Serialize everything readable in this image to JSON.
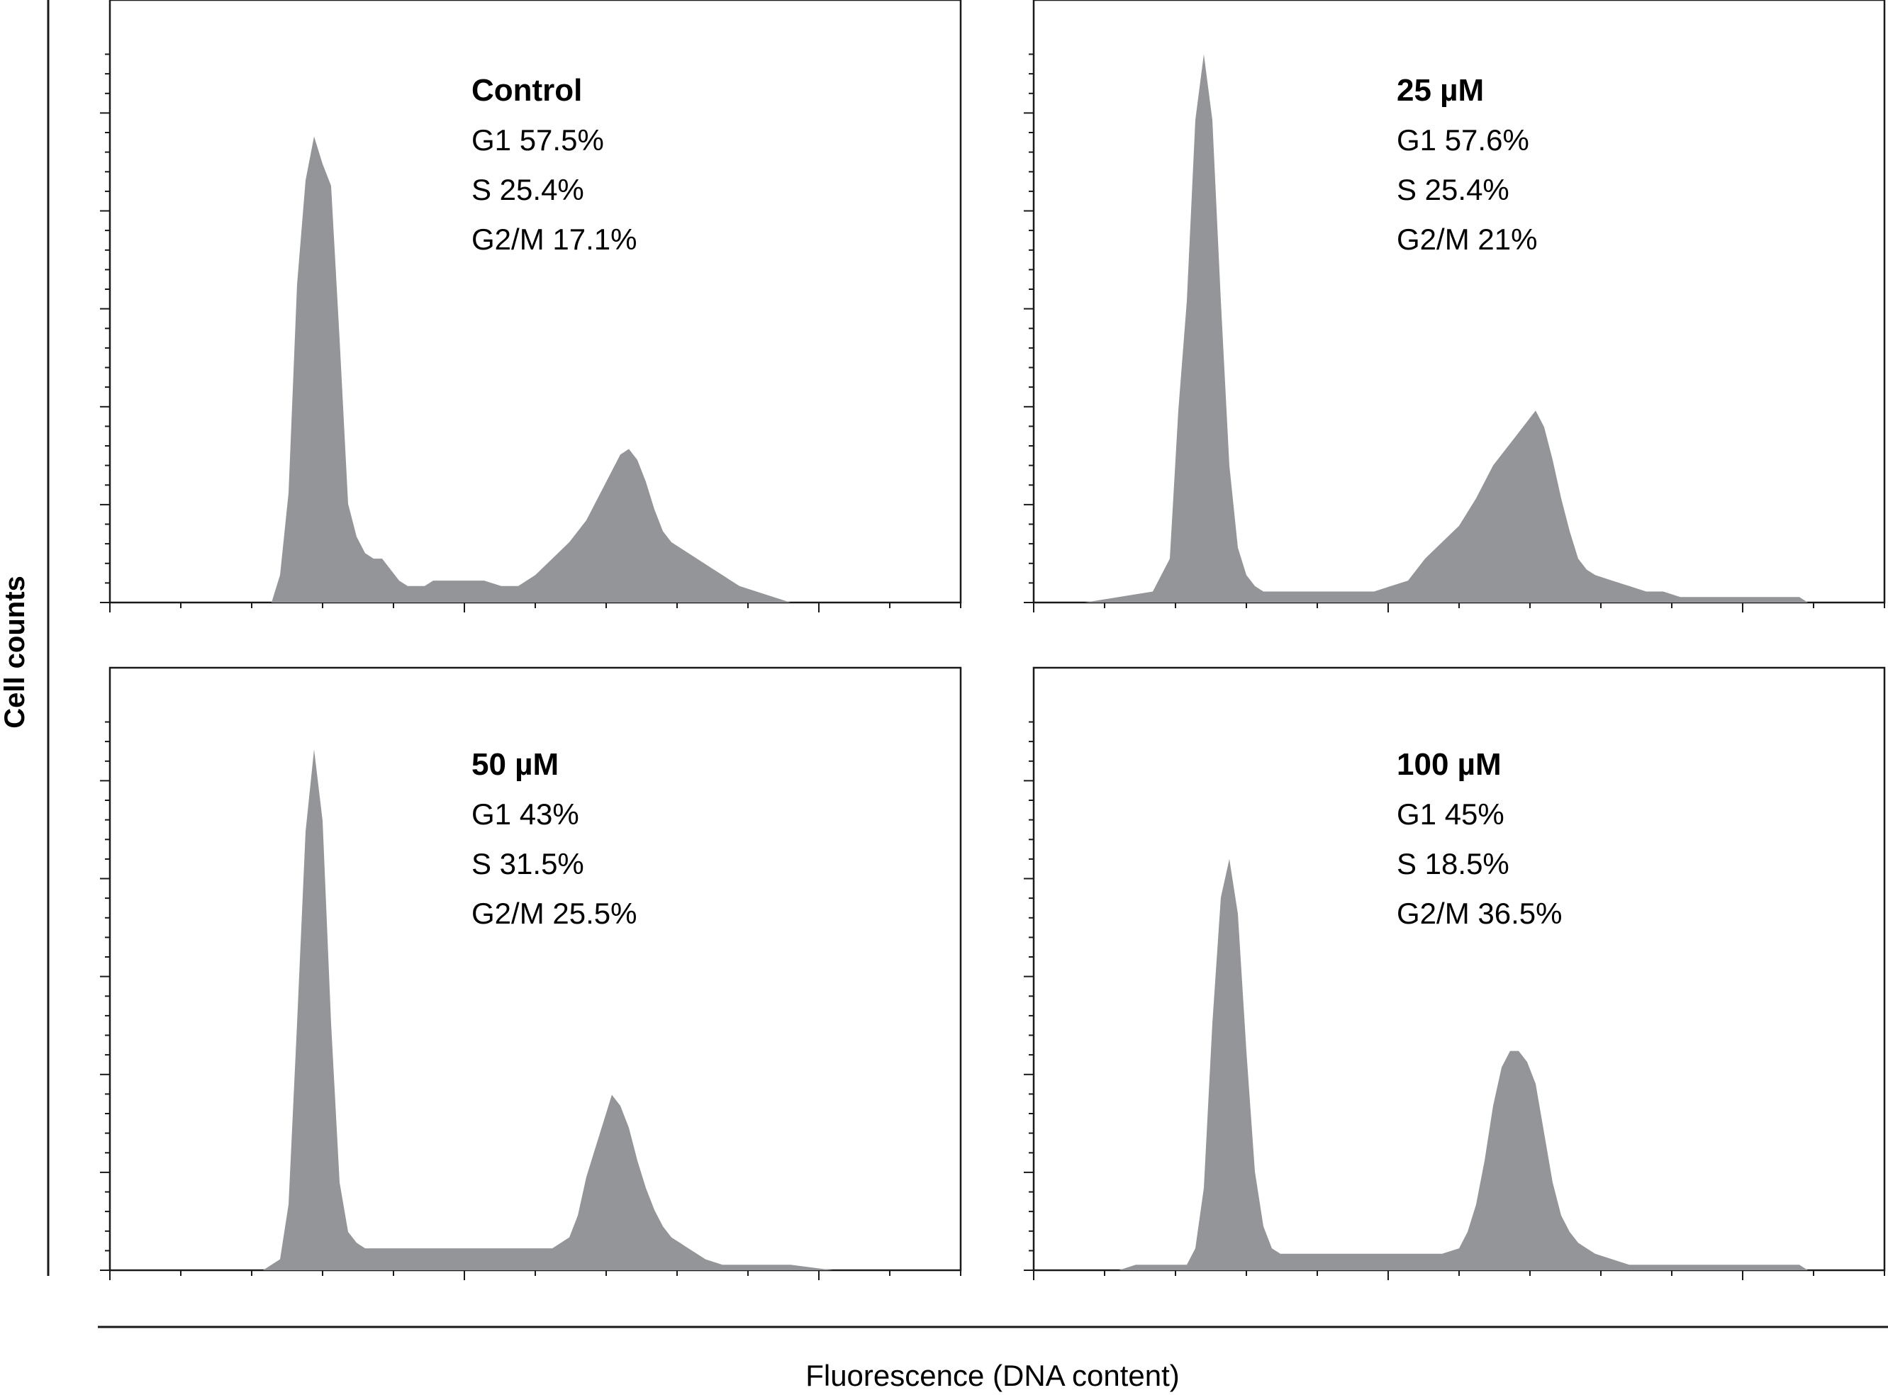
{
  "figure": {
    "y_axis_label": "Cell counts",
    "x_axis_label": "Fluorescence (DNA content)",
    "fill_color": "#939598",
    "line_color": "#1a1a1a"
  },
  "chart_data": [
    {
      "type": "area",
      "title": "Control",
      "annotations": [
        "G1 57.5%",
        "S 25.4%",
        "G2/M 17.1%"
      ],
      "xlabel": "Fluorescence (DNA content)",
      "ylabel": "Cell counts",
      "xlim": [
        0,
        100
      ],
      "ylim": [
        0,
        100
      ],
      "grid": false,
      "x": [
        0,
        19,
        20,
        21,
        22,
        23,
        24,
        25,
        26,
        27,
        28,
        29,
        30,
        31,
        32,
        33,
        34,
        35,
        36,
        37,
        38,
        40,
        42,
        44,
        46,
        48,
        50,
        52,
        54,
        56,
        58,
        59,
        60,
        61,
        62,
        63,
        64,
        65,
        66,
        67,
        68,
        69,
        70,
        71,
        72,
        73,
        74,
        76,
        78,
        80,
        100
      ],
      "values": [
        0,
        0,
        5,
        20,
        58,
        77,
        85,
        80,
        76,
        48,
        18,
        12,
        9,
        8,
        8,
        6,
        4,
        3,
        3,
        3,
        4,
        4,
        4,
        4,
        3,
        3,
        5,
        8,
        11,
        15,
        21,
        24,
        27,
        28,
        26,
        22,
        17,
        13,
        11,
        10,
        9,
        8,
        7,
        6,
        5,
        4,
        3,
        2,
        1,
        0,
        0
      ]
    },
    {
      "type": "area",
      "title": "25 µM",
      "annotations": [
        "G1 57.6%",
        "S 25.4%",
        "G2/M 21%"
      ],
      "xlabel": "Fluorescence (DNA content)",
      "ylabel": "Cell counts",
      "xlim": [
        0,
        100
      ],
      "ylim": [
        0,
        100
      ],
      "grid": false,
      "x": [
        0,
        6,
        10,
        14,
        16,
        17,
        18,
        19,
        20,
        21,
        22,
        23,
        24,
        25,
        26,
        27,
        28,
        29,
        30,
        32,
        34,
        36,
        38,
        40,
        42,
        44,
        46,
        48,
        50,
        52,
        54,
        56,
        58,
        59,
        60,
        61,
        62,
        63,
        64,
        65,
        66,
        68,
        70,
        72,
        74,
        76,
        78,
        80,
        82,
        84,
        86,
        88,
        90,
        91,
        100
      ],
      "values": [
        0,
        0,
        1,
        2,
        8,
        35,
        55,
        88,
        100,
        88,
        55,
        25,
        10,
        5,
        3,
        2,
        2,
        2,
        2,
        2,
        2,
        2,
        2,
        2,
        3,
        4,
        8,
        11,
        14,
        19,
        25,
        29,
        33,
        35,
        32,
        26,
        19,
        13,
        8,
        6,
        5,
        4,
        3,
        2,
        2,
        1,
        1,
        1,
        1,
        1,
        1,
        1,
        1,
        0,
        0
      ]
    },
    {
      "type": "area",
      "title": "50 µM",
      "annotations": [
        "G1 43%",
        "S 31.5%",
        "G2/M 25.5%"
      ],
      "xlabel": "Fluorescence (DNA content)",
      "ylabel": "Cell counts",
      "xlim": [
        0,
        100
      ],
      "ylim": [
        0,
        100
      ],
      "grid": false,
      "x": [
        0,
        18,
        20,
        21,
        22,
        23,
        24,
        25,
        26,
        27,
        28,
        29,
        30,
        32,
        34,
        36,
        38,
        40,
        42,
        44,
        46,
        48,
        50,
        52,
        54,
        55,
        56,
        57,
        58,
        59,
        60,
        61,
        62,
        63,
        64,
        65,
        66,
        67,
        68,
        69,
        70,
        72,
        74,
        76,
        78,
        80,
        85,
        90,
        95,
        100
      ],
      "values": [
        0,
        0,
        2,
        12,
        45,
        80,
        95,
        82,
        45,
        16,
        7,
        5,
        4,
        4,
        4,
        4,
        4,
        4,
        4,
        4,
        4,
        4,
        4,
        4,
        6,
        10,
        17,
        22,
        27,
        32,
        30,
        26,
        20,
        15,
        11,
        8,
        6,
        5,
        4,
        3,
        2,
        1,
        1,
        1,
        1,
        1,
        0,
        0,
        0,
        0
      ]
    },
    {
      "type": "area",
      "title": "100 µM",
      "annotations": [
        "G1 45%",
        "S 18.5%",
        "G2/M 36.5%"
      ],
      "xlabel": "Fluorescence (DNA content)",
      "ylabel": "Cell counts",
      "xlim": [
        0,
        100
      ],
      "ylim": [
        0,
        100
      ],
      "grid": false,
      "x": [
        0,
        10,
        12,
        14,
        16,
        18,
        19,
        20,
        21,
        22,
        23,
        24,
        25,
        26,
        27,
        28,
        29,
        30,
        31,
        32,
        34,
        36,
        38,
        40,
        42,
        44,
        46,
        48,
        50,
        51,
        52,
        53,
        54,
        55,
        56,
        57,
        58,
        59,
        60,
        61,
        62,
        63,
        64,
        65,
        66,
        68,
        70,
        72,
        74,
        76,
        78,
        80,
        82,
        84,
        88,
        90,
        91,
        100
      ],
      "values": [
        0,
        0,
        1,
        1,
        1,
        1,
        4,
        15,
        45,
        68,
        75,
        65,
        40,
        18,
        8,
        4,
        3,
        3,
        3,
        3,
        3,
        3,
        3,
        3,
        3,
        3,
        3,
        3,
        4,
        7,
        12,
        20,
        30,
        37,
        40,
        40,
        38,
        34,
        25,
        16,
        10,
        7,
        5,
        4,
        3,
        2,
        1,
        1,
        1,
        1,
        1,
        1,
        1,
        1,
        1,
        1,
        0,
        0
      ]
    }
  ]
}
